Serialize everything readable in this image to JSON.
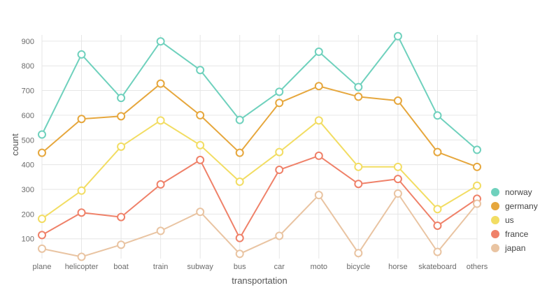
{
  "chart_data": {
    "type": "line",
    "categories": [
      "plane",
      "helicopter",
      "boat",
      "train",
      "subway",
      "bus",
      "car",
      "moto",
      "bicycle",
      "horse",
      "skateboard",
      "others"
    ],
    "xlabel": "transportation",
    "ylabel": "count",
    "ylim": [
      20,
      925
    ],
    "yticks": [
      100,
      200,
      300,
      400,
      500,
      600,
      700,
      800,
      900
    ],
    "grid": true,
    "legend_position": "right",
    "series": [
      {
        "name": "norway",
        "color": "#6fd1bd",
        "values": [
          522,
          846,
          670,
          899,
          783,
          581,
          695,
          857,
          714,
          920,
          599,
          460
        ]
      },
      {
        "name": "germany",
        "color": "#e6a73d",
        "values": [
          448,
          585,
          596,
          728,
          600,
          448,
          650,
          718,
          675,
          659,
          451,
          391
        ]
      },
      {
        "name": "us",
        "color": "#f2dd63",
        "values": [
          181,
          295,
          473,
          579,
          479,
          331,
          451,
          579,
          391,
          391,
          220,
          315
        ]
      },
      {
        "name": "france",
        "color": "#ef8169",
        "values": [
          115,
          206,
          188,
          320,
          419,
          103,
          379,
          436,
          322,
          342,
          153,
          262
        ]
      },
      {
        "name": "japan",
        "color": "#e9c4a2",
        "values": [
          60,
          27,
          76,
          132,
          209,
          39,
          112,
          277,
          42,
          283,
          47,
          242
        ]
      }
    ]
  }
}
